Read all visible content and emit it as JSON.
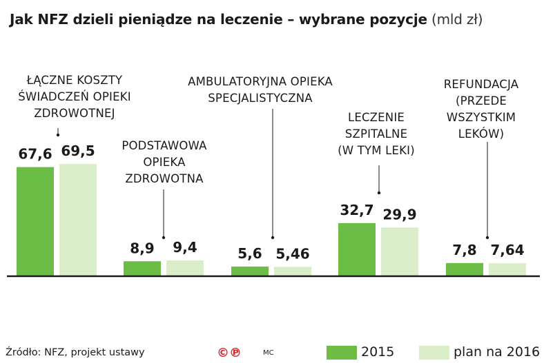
{
  "title": "Jak NFZ dzieli pieniądze na leczenie – wybrane pozycje",
  "title_unit": "(mld zł)",
  "source": "Źródło: NFZ, projekt ustawy",
  "copyright": "©℗",
  "author": "MC",
  "colors": {
    "s2015": "#6cbd45",
    "s2016": "#d8edc8",
    "axis": "#1a1a1a"
  },
  "chart_data": {
    "type": "bar",
    "categories": [
      "ŁĄCZNE KOSZTY ŚWIADCZEŃ OPIEKI ZDROWOTNEJ",
      "PODSTAWOWA OPIEKA ZDROWOTNA",
      "AMBULATORYJNA OPIEKA SPECJALISTYCZNA",
      "LECZENIE SZPITALNE (W TYM LEKI)",
      "REFUNDACJA (PRZEDE WSZYSTKIM LEKÓW)"
    ],
    "category_label_lines": [
      [
        "ŁĄCZNE KOSZTY",
        "ŚWIADCZEŃ OPIEKI",
        "ZDROWOTNEJ"
      ],
      [
        "PODSTAWOWA",
        "OPIEKA",
        "ZDROWOTNA"
      ],
      [
        "AMBULATORYJNA OPIEKA",
        "SPECJALISTYCZNA"
      ],
      [
        "LECZENIE",
        "SZPITALNE",
        "(W TYM LEKI)"
      ],
      [
        "REFUNDACJA",
        "(PRZEDE",
        "WSZYSTKIM",
        "LEKÓW)"
      ]
    ],
    "series": [
      {
        "name": "2015",
        "values": [
          67.6,
          8.9,
          5.6,
          32.7,
          7.8
        ],
        "labels": [
          "67,6",
          "8,9",
          "5,6",
          "32,7",
          "7,8"
        ]
      },
      {
        "name": "plan na 2016",
        "values": [
          69.5,
          9.4,
          5.46,
          29.9,
          7.64
        ],
        "labels": [
          "69,5",
          "9,4",
          "5,46",
          "29,9",
          "7,64"
        ]
      }
    ],
    "ylim": [
      0,
      70
    ],
    "grid": false,
    "legend": "bottom-right"
  }
}
